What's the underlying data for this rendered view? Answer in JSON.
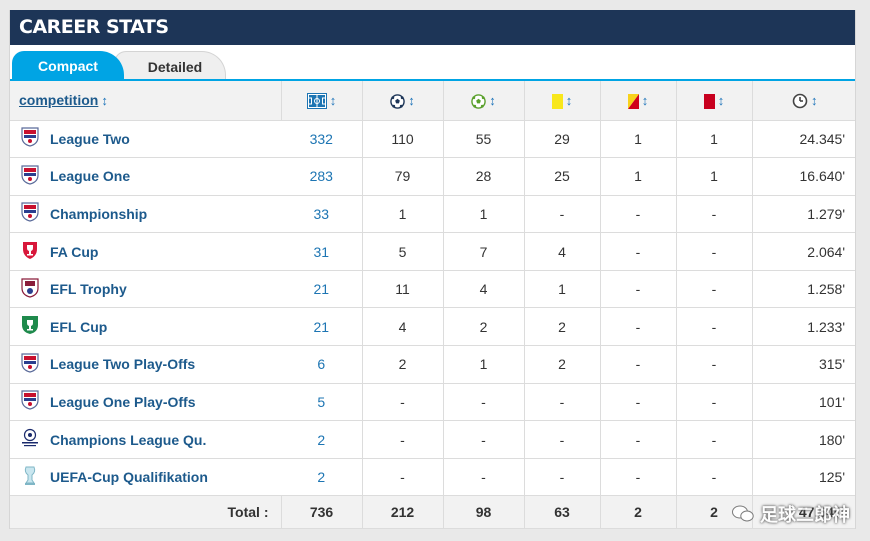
{
  "header": {
    "title": "CAREER STATS"
  },
  "tabs": [
    {
      "label": "Compact",
      "active": true
    },
    {
      "label": "Detailed",
      "active": false
    }
  ],
  "columns": {
    "competition": "competition",
    "icons": [
      "pitch-appearances-icon",
      "goals-ball-icon",
      "assists-ball-icon",
      "yellow-card-icon",
      "second-yellow-card-icon",
      "red-card-icon",
      "minutes-clock-icon"
    ]
  },
  "colors": {
    "header_bg": "#1d3557",
    "tab_active": "#00a4e4",
    "link": "#1d5a8c"
  },
  "rows": [
    {
      "competition": "League Two",
      "crest": "efl-crest-icon",
      "apps": "332",
      "goals": "110",
      "assists": "55",
      "yellow": "29",
      "yellow_red": "1",
      "red": "1",
      "minutes": "24.345'"
    },
    {
      "competition": "League One",
      "crest": "efl-crest-icon",
      "apps": "283",
      "goals": "79",
      "assists": "28",
      "yellow": "25",
      "yellow_red": "1",
      "red": "1",
      "minutes": "16.640'"
    },
    {
      "competition": "Championship",
      "crest": "efl-crest-icon",
      "apps": "33",
      "goals": "1",
      "assists": "1",
      "yellow": "-",
      "yellow_red": "-",
      "red": "-",
      "minutes": "1.279'"
    },
    {
      "competition": "FA Cup",
      "crest": "fa-cup-crest-icon",
      "apps": "31",
      "goals": "5",
      "assists": "7",
      "yellow": "4",
      "yellow_red": "-",
      "red": "-",
      "minutes": "2.064'"
    },
    {
      "competition": "EFL Trophy",
      "crest": "efl-trophy-crest-icon",
      "apps": "21",
      "goals": "11",
      "assists": "4",
      "yellow": "1",
      "yellow_red": "-",
      "red": "-",
      "minutes": "1.258'"
    },
    {
      "competition": "EFL Cup",
      "crest": "efl-cup-crest-icon",
      "apps": "21",
      "goals": "4",
      "assists": "2",
      "yellow": "2",
      "yellow_red": "-",
      "red": "-",
      "minutes": "1.233'"
    },
    {
      "competition": "League Two Play-Offs",
      "crest": "efl-crest-icon",
      "apps": "6",
      "goals": "2",
      "assists": "1",
      "yellow": "2",
      "yellow_red": "-",
      "red": "-",
      "minutes": "315'"
    },
    {
      "competition": "League One Play-Offs",
      "crest": "efl-crest-icon",
      "apps": "5",
      "goals": "-",
      "assists": "-",
      "yellow": "-",
      "yellow_red": "-",
      "red": "-",
      "minutes": "101'"
    },
    {
      "competition": "Champions League Qu.",
      "crest": "champions-league-crest-icon",
      "apps": "2",
      "goals": "-",
      "assists": "-",
      "yellow": "-",
      "yellow_red": "-",
      "red": "-",
      "minutes": "180'"
    },
    {
      "competition": "UEFA-Cup Qualifikation",
      "crest": "uefa-cup-crest-icon",
      "apps": "2",
      "goals": "-",
      "assists": "-",
      "yellow": "-",
      "yellow_red": "-",
      "red": "-",
      "minutes": "125'"
    }
  ],
  "totals": {
    "label": "Total :",
    "apps": "736",
    "goals": "212",
    "assists": "98",
    "yellow": "63",
    "yellow_red": "2",
    "red": "2",
    "minutes": "47.540'"
  },
  "watermark": "足球二郎神"
}
